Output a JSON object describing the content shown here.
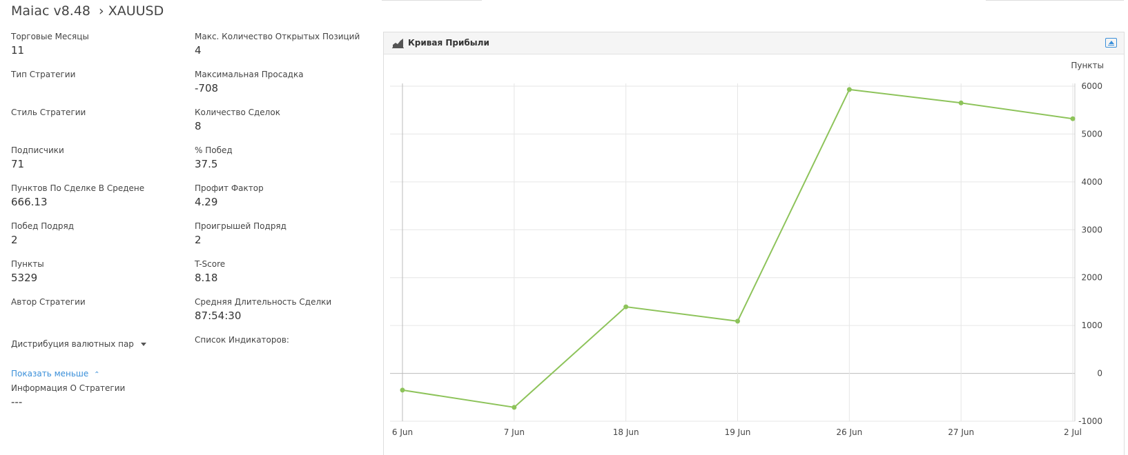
{
  "header": {
    "title": "Maiac v8.48",
    "separator": "›",
    "symbol": "XAUUSD"
  },
  "stats_left": [
    {
      "label": "Торговые Месяцы",
      "value": "11"
    },
    {
      "label": "Тип Стратегии",
      "value": ""
    },
    {
      "label": "Стиль Стратегии",
      "value": ""
    },
    {
      "label": "Подписчики",
      "value": "71"
    },
    {
      "label": "Пунктов По Сделке В Средене",
      "value": "666.13"
    },
    {
      "label": "Побед Подряд",
      "value": "2"
    },
    {
      "label": "Пункты",
      "value": "5329"
    },
    {
      "label": "Автор Стратегии",
      "value": ""
    }
  ],
  "stats_right": [
    {
      "label": "Макс. Количество Открытых Позиций",
      "value": "4"
    },
    {
      "label": "Максимальная Просадка",
      "value": "-708"
    },
    {
      "label": "Количество Сделок",
      "value": "8"
    },
    {
      "label": "% Побед",
      "value": "37.5"
    },
    {
      "label": "Профит Фактор",
      "value": "4.29"
    },
    {
      "label": "Проигрышей Подряд",
      "value": "2"
    },
    {
      "label": "T-Score",
      "value": "8.18"
    },
    {
      "label": "Средняя Длительность Сделки",
      "value": "87:54:30"
    },
    {
      "label": "Список Индикаторов:",
      "value": ""
    }
  ],
  "distribution": {
    "label": "Дистрибуция валютных пар",
    "icon": "caret-down-icon"
  },
  "show_less": {
    "label": "Показать меньше",
    "icon": "chevron-up-icon"
  },
  "strategy_info": {
    "label": "Информация О Стратегии",
    "value": "---"
  },
  "panel": {
    "title": "Кривая Прибыли",
    "title_icon": "area-chart-icon",
    "collapse_icon": "collapse-icon"
  },
  "chart_data": {
    "type": "line",
    "title": "",
    "xlabel": "",
    "ylabel": "Пункты",
    "categories": [
      "6 Jun",
      "7 Jun",
      "18 Jun",
      "19 Jun",
      "26 Jun",
      "27 Jun",
      "2 Jul"
    ],
    "series": [
      {
        "values": [
          -350,
          -710,
          1390,
          1090,
          5930,
          5650,
          5320
        ],
        "color": "#8dc35a"
      }
    ],
    "ylim": [
      -1000,
      6000
    ],
    "yticks": [
      -1000,
      0,
      1000,
      2000,
      3000,
      4000,
      5000,
      6000
    ],
    "grid": true,
    "y_axis_side": "right",
    "line_color": "#8dc35a",
    "grid_color": "#e6e6e6"
  }
}
